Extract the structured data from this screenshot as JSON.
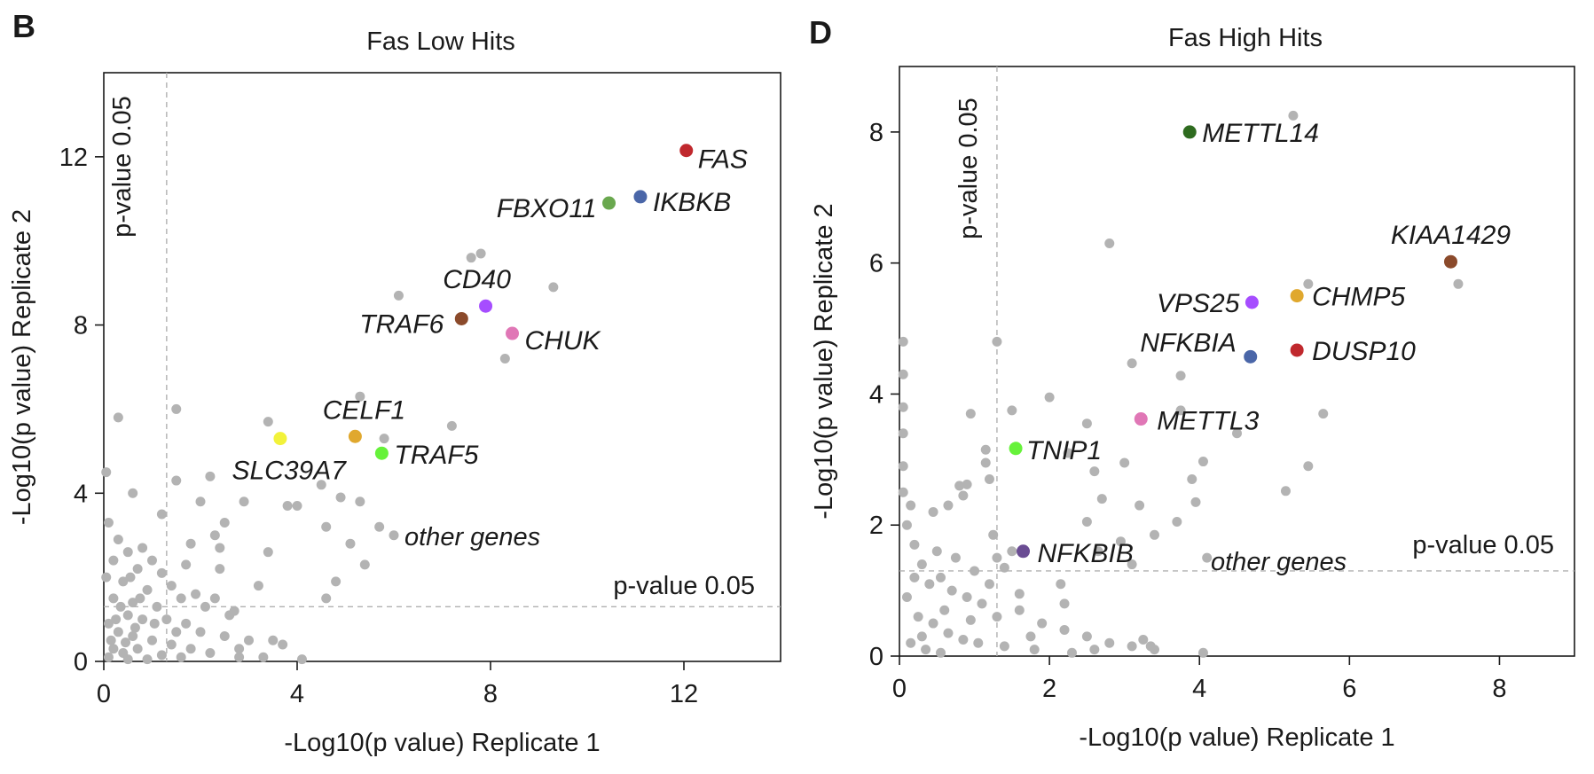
{
  "chart_data": [
    {
      "panel": "B",
      "type": "scatter",
      "title": "Fas Low Hits",
      "xlabel": "-Log10(p value) Replicate 1",
      "ylabel": "-Log10(p value) Replicate 2",
      "xlim": [
        0,
        14
      ],
      "ylim": [
        0,
        14
      ],
      "xticks": [
        0,
        4,
        8,
        12
      ],
      "yticks": [
        0,
        4,
        8,
        12
      ],
      "threshold": 1.3,
      "threshold_label": "p-value 0.05",
      "other_label": "other genes",
      "other_color": "#b3b3b3",
      "highlighted": [
        {
          "gene": "FAS",
          "x": 12.05,
          "y": 12.15,
          "color": "#c0282d"
        },
        {
          "gene": "IKBKB",
          "x": 11.1,
          "y": 11.05,
          "color": "#4a66a8"
        },
        {
          "gene": "FBXO11",
          "x": 10.45,
          "y": 10.9,
          "color": "#6aa84f"
        },
        {
          "gene": "CD40",
          "x": 7.9,
          "y": 8.45,
          "color": "#a64dff"
        },
        {
          "gene": "TRAF6",
          "x": 7.4,
          "y": 8.15,
          "color": "#8b4a2b"
        },
        {
          "gene": "CHUK",
          "x": 8.45,
          "y": 7.8,
          "color": "#e077b6"
        },
        {
          "gene": "CELF1",
          "x": 5.2,
          "y": 5.35,
          "color": "#e0a82e"
        },
        {
          "gene": "TRAF5",
          "x": 5.75,
          "y": 4.95,
          "color": "#66f23a"
        },
        {
          "gene": "SLC39A7",
          "x": 3.65,
          "y": 5.3,
          "color": "#f2f23a"
        }
      ],
      "other_points": [
        [
          7.6,
          9.6
        ],
        [
          7.8,
          9.7
        ],
        [
          6.1,
          8.7
        ],
        [
          9.3,
          8.9
        ],
        [
          8.3,
          7.2
        ],
        [
          5.3,
          6.3
        ],
        [
          7.2,
          5.6
        ],
        [
          3.4,
          5.7
        ],
        [
          1.5,
          6.0
        ],
        [
          0.3,
          5.8
        ],
        [
          5.8,
          5.3
        ],
        [
          2.2,
          4.4
        ],
        [
          1.5,
          4.3
        ],
        [
          0.6,
          4.0
        ],
        [
          2.0,
          3.8
        ],
        [
          2.9,
          3.8
        ],
        [
          3.8,
          3.7
        ],
        [
          4.0,
          3.7
        ],
        [
          4.5,
          4.2
        ],
        [
          4.9,
          3.9
        ],
        [
          5.3,
          3.8
        ],
        [
          1.2,
          3.5
        ],
        [
          2.5,
          3.3
        ],
        [
          4.6,
          3.2
        ],
        [
          5.7,
          3.2
        ],
        [
          6.0,
          3.0
        ],
        [
          5.1,
          2.8
        ],
        [
          3.4,
          2.6
        ],
        [
          1.8,
          2.8
        ],
        [
          0.8,
          2.7
        ],
        [
          2.4,
          2.2
        ],
        [
          5.4,
          2.3
        ],
        [
          4.8,
          1.9
        ],
        [
          3.2,
          1.8
        ],
        [
          4.6,
          1.5
        ],
        [
          2.6,
          1.1
        ],
        [
          0.3,
          2.9
        ],
        [
          0.5,
          2.6
        ],
        [
          0.7,
          2.2
        ],
        [
          1.0,
          2.4
        ],
        [
          1.2,
          2.1
        ],
        [
          0.1,
          3.3
        ],
        [
          0.2,
          2.4
        ],
        [
          0.4,
          1.9
        ],
        [
          0.9,
          1.7
        ],
        [
          1.4,
          1.8
        ],
        [
          1.6,
          1.5
        ],
        [
          1.9,
          1.6
        ],
        [
          2.1,
          1.3
        ],
        [
          2.3,
          1.5
        ],
        [
          2.7,
          1.2
        ],
        [
          0.6,
          1.4
        ],
        [
          1.1,
          1.3
        ],
        [
          0.2,
          1.5
        ],
        [
          0.5,
          1.1
        ],
        [
          0.8,
          1.0
        ],
        [
          1.3,
          1.0
        ],
        [
          1.7,
          0.9
        ],
        [
          2.0,
          0.7
        ],
        [
          2.5,
          0.6
        ],
        [
          3.0,
          0.5
        ],
        [
          3.5,
          0.5
        ],
        [
          3.7,
          0.4
        ],
        [
          0.1,
          0.9
        ],
        [
          0.3,
          0.7
        ],
        [
          0.6,
          0.6
        ],
        [
          1.0,
          0.5
        ],
        [
          1.4,
          0.4
        ],
        [
          1.8,
          0.3
        ],
        [
          2.2,
          0.2
        ],
        [
          2.8,
          0.1
        ],
        [
          0.2,
          0.3
        ],
        [
          0.4,
          0.2
        ],
        [
          0.7,
          0.3
        ],
        [
          1.2,
          0.15
        ],
        [
          1.6,
          0.1
        ],
        [
          0.1,
          0.1
        ],
        [
          0.5,
          0.05
        ],
        [
          0.9,
          0.05
        ],
        [
          0.05,
          4.5
        ],
        [
          0.05,
          2.0
        ],
        [
          0.15,
          0.5
        ],
        [
          0.35,
          1.3
        ],
        [
          0.65,
          0.8
        ],
        [
          1.05,
          0.9
        ],
        [
          2.4,
          2.7
        ],
        [
          2.3,
          3.0
        ],
        [
          1.7,
          2.3
        ],
        [
          0.45,
          0.45
        ],
        [
          0.25,
          1.0
        ],
        [
          0.75,
          1.5
        ],
        [
          1.5,
          0.7
        ],
        [
          0.55,
          2.0
        ],
        [
          2.8,
          0.3
        ],
        [
          4.1,
          0.05
        ],
        [
          3.3,
          0.1
        ]
      ]
    },
    {
      "panel": "D",
      "type": "scatter",
      "title": "Fas High Hits",
      "xlabel": "-Log10(p value) Replicate 1",
      "ylabel": "-Log10(p value) Replicate 2",
      "xlim": [
        0,
        9
      ],
      "ylim": [
        0,
        9
      ],
      "xticks": [
        0,
        2,
        4,
        6,
        8
      ],
      "yticks": [
        0,
        2,
        4,
        6,
        8
      ],
      "threshold": 1.3,
      "threshold_label": "p-value 0.05",
      "other_label": "other genes",
      "other_color": "#b3b3b3",
      "highlighted": [
        {
          "gene": "METTL14",
          "x": 3.87,
          "y": 8.0,
          "color": "#2e6b1f"
        },
        {
          "gene": "KIAA1429",
          "x": 7.35,
          "y": 6.02,
          "color": "#8b4a2b"
        },
        {
          "gene": "CHMP5",
          "x": 5.3,
          "y": 5.5,
          "color": "#e0a82e"
        },
        {
          "gene": "VPS25",
          "x": 4.7,
          "y": 5.4,
          "color": "#a64dff"
        },
        {
          "gene": "DUSP10",
          "x": 5.3,
          "y": 4.67,
          "color": "#c0282d"
        },
        {
          "gene": "NFKBIA",
          "x": 4.68,
          "y": 4.57,
          "color": "#4a66a8"
        },
        {
          "gene": "METTL3",
          "x": 3.22,
          "y": 3.62,
          "color": "#e077b6"
        },
        {
          "gene": "TNIP1",
          "x": 1.55,
          "y": 3.17,
          "color": "#66f23a"
        },
        {
          "gene": "NFKBIB",
          "x": 1.65,
          "y": 1.6,
          "color": "#6a4c93"
        }
      ],
      "other_points": [
        [
          5.25,
          8.25
        ],
        [
          2.8,
          6.3
        ],
        [
          5.45,
          5.68
        ],
        [
          7.45,
          5.68
        ],
        [
          3.1,
          4.47
        ],
        [
          3.75,
          4.28
        ],
        [
          1.3,
          4.8
        ],
        [
          2.0,
          3.95
        ],
        [
          3.75,
          3.75
        ],
        [
          5.65,
          3.7
        ],
        [
          1.5,
          3.75
        ],
        [
          0.95,
          3.7
        ],
        [
          2.5,
          3.55
        ],
        [
          4.5,
          3.4
        ],
        [
          1.15,
          3.15
        ],
        [
          1.15,
          2.95
        ],
        [
          1.2,
          2.7
        ],
        [
          2.25,
          3.1
        ],
        [
          3.0,
          2.95
        ],
        [
          4.05,
          2.97
        ],
        [
          3.9,
          2.7
        ],
        [
          2.6,
          2.82
        ],
        [
          5.45,
          2.9
        ],
        [
          5.15,
          2.52
        ],
        [
          0.8,
          2.6
        ],
        [
          0.9,
          2.62
        ],
        [
          2.7,
          2.4
        ],
        [
          3.2,
          2.3
        ],
        [
          3.95,
          2.35
        ],
        [
          2.5,
          2.05
        ],
        [
          3.7,
          2.05
        ],
        [
          0.45,
          2.2
        ],
        [
          0.65,
          2.3
        ],
        [
          0.85,
          2.45
        ],
        [
          1.25,
          1.85
        ],
        [
          3.4,
          1.85
        ],
        [
          2.95,
          1.75
        ],
        [
          1.3,
          1.5
        ],
        [
          1.5,
          1.6
        ],
        [
          4.1,
          1.5
        ],
        [
          3.1,
          1.4
        ],
        [
          2.65,
          1.6
        ],
        [
          0.05,
          4.8
        ],
        [
          0.05,
          4.3
        ],
        [
          0.05,
          3.8
        ],
        [
          0.05,
          3.4
        ],
        [
          0.05,
          2.9
        ],
        [
          0.05,
          2.5
        ],
        [
          0.1,
          2.0
        ],
        [
          0.2,
          1.7
        ],
        [
          0.3,
          1.4
        ],
        [
          0.4,
          1.1
        ],
        [
          0.55,
          1.2
        ],
        [
          0.7,
          1.0
        ],
        [
          0.9,
          0.9
        ],
        [
          1.1,
          0.8
        ],
        [
          1.3,
          0.6
        ],
        [
          1.6,
          0.7
        ],
        [
          1.9,
          0.5
        ],
        [
          2.2,
          0.4
        ],
        [
          2.5,
          0.3
        ],
        [
          2.8,
          0.2
        ],
        [
          3.1,
          0.15
        ],
        [
          3.4,
          0.1
        ],
        [
          0.1,
          0.9
        ],
        [
          0.25,
          0.6
        ],
        [
          0.45,
          0.5
        ],
        [
          0.65,
          0.35
        ],
        [
          0.85,
          0.25
        ],
        [
          1.05,
          0.2
        ],
        [
          1.4,
          0.15
        ],
        [
          1.8,
          0.1
        ],
        [
          2.3,
          0.05
        ],
        [
          0.15,
          0.2
        ],
        [
          0.35,
          0.1
        ],
        [
          0.55,
          0.05
        ],
        [
          0.75,
          1.5
        ],
        [
          1.0,
          1.3
        ],
        [
          2.2,
          0.8
        ],
        [
          2.15,
          1.1
        ],
        [
          3.25,
          0.25
        ],
        [
          3.35,
          0.15
        ],
        [
          4.05,
          0.05
        ],
        [
          0.6,
          0.7
        ],
        [
          1.2,
          1.1
        ],
        [
          0.3,
          0.3
        ],
        [
          0.95,
          0.55
        ],
        [
          1.75,
          0.3
        ],
        [
          2.6,
          0.1
        ],
        [
          0.2,
          1.2
        ],
        [
          0.5,
          1.6
        ],
        [
          0.15,
          2.3
        ],
        [
          1.6,
          0.95
        ],
        [
          1.4,
          1.35
        ]
      ]
    }
  ],
  "panels": [
    {
      "letter": "B"
    },
    {
      "letter": "D"
    }
  ]
}
